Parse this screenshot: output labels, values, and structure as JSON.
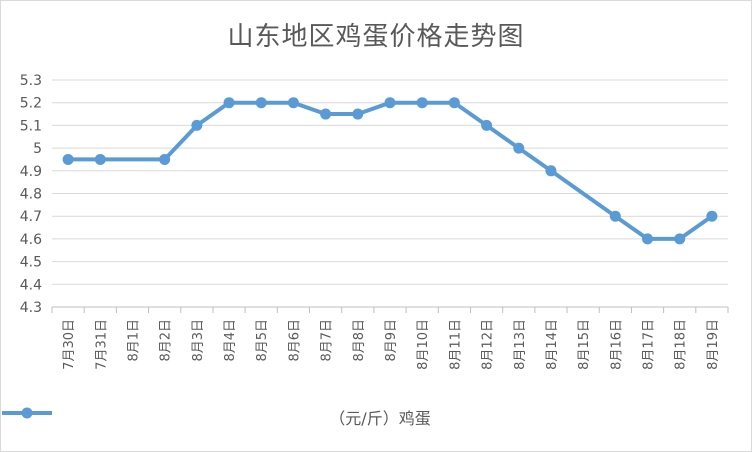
{
  "chart_data": {
    "type": "line",
    "title": "山东地区鸡蛋价格走势图",
    "categories": [
      "7月30日",
      "7月31日",
      "8月1日",
      "8月2日",
      "8月3日",
      "8月4日",
      "8月5日",
      "8月6日",
      "8月7日",
      "8月8日",
      "8月9日",
      "8月10日",
      "8月11日",
      "8月12日",
      "8月13日",
      "8月14日",
      "8月15日",
      "8月16日",
      "8月17日",
      "8月18日",
      "8月19日"
    ],
    "series": [
      {
        "name": "（元/斤）鸡蛋",
        "values": [
          4.95,
          4.95,
          null,
          4.95,
          5.1,
          5.2,
          5.2,
          5.2,
          5.15,
          5.15,
          5.2,
          5.2,
          5.2,
          5.1,
          5.0,
          4.9,
          null,
          4.7,
          4.6,
          4.6,
          4.7
        ],
        "color": "#5b9bd5"
      }
    ],
    "ylim": [
      4.3,
      5.3
    ],
    "yticks": [
      "4.3",
      "4.4",
      "4.5",
      "4.6",
      "4.7",
      "4.8",
      "4.9",
      "5",
      "5.1",
      "5.2",
      "5.3"
    ],
    "grid": true,
    "legend": "bottom"
  }
}
